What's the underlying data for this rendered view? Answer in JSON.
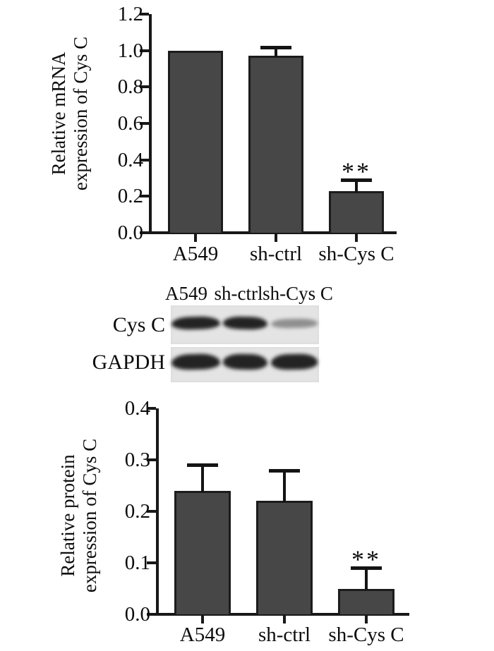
{
  "figure": {
    "background": "#ffffff",
    "bar_color": "#474747",
    "axis_color": "#181818",
    "text_color": "#0c0c0c",
    "blot_panel_color": "#e4e4e4"
  },
  "chart_data": [
    {
      "id": "mrna",
      "type": "bar",
      "title": "",
      "ylabel_lines": [
        "Relative mRNA",
        "expression of Cys C"
      ],
      "xlabel": "",
      "categories": [
        "A549",
        "sh-ctrl",
        "sh-Cys C"
      ],
      "values": [
        1.0,
        0.97,
        0.23
      ],
      "errors_up": [
        0,
        0.05,
        0.06
      ],
      "significance": [
        "",
        "",
        "**"
      ],
      "ytick_values": [
        0,
        0.2,
        0.4,
        0.6,
        0.8,
        1.0,
        1.2
      ],
      "ytick_labels": [
        "0.0",
        "0.2",
        "0.4",
        "0.6",
        "0.8",
        "1.0",
        "1.2"
      ],
      "ylim": [
        0,
        1.2
      ],
      "grid": false,
      "legend": "none"
    },
    {
      "id": "protein",
      "type": "bar",
      "title": "",
      "ylabel_lines": [
        "Relative protein",
        "expression of Cys C"
      ],
      "xlabel": "",
      "categories": [
        "A549",
        "sh-ctrl",
        "sh-Cys C"
      ],
      "values": [
        0.24,
        0.22,
        0.05
      ],
      "errors_up": [
        0.05,
        0.06,
        0.04
      ],
      "significance": [
        "",
        "",
        "**"
      ],
      "ytick_values": [
        0,
        0.1,
        0.2,
        0.3,
        0.4
      ],
      "ytick_labels": [
        "0.0",
        "0.1",
        "0.2",
        "0.3",
        "0.4"
      ],
      "ylim": [
        0,
        0.4
      ],
      "grid": false,
      "legend": "none"
    }
  ],
  "blot": {
    "lane_headers": [
      "A549",
      "sh-ctrl",
      "sh-Cys C"
    ],
    "rows": [
      {
        "label": "Cys C",
        "bands": [
          "dark",
          "dark",
          "faint"
        ]
      },
      {
        "label": "GAPDH",
        "bands": [
          "dark",
          "dark",
          "dark"
        ]
      }
    ]
  }
}
